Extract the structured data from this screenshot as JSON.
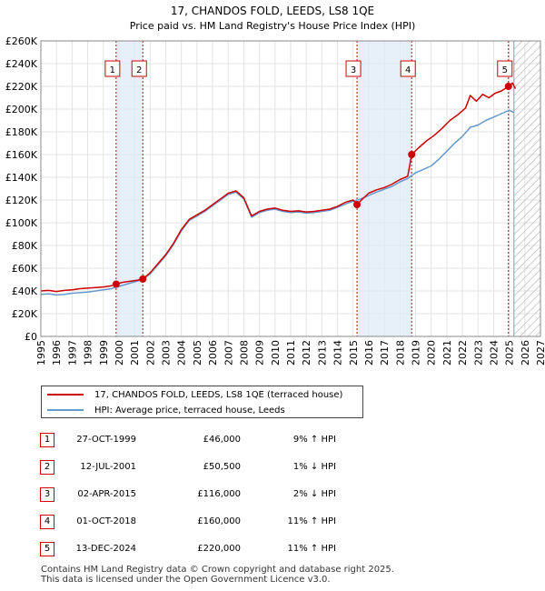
{
  "chart_data": {
    "type": "line",
    "title": "17, CHANDOS FOLD, LEEDS, LS8 1QE",
    "subtitle": "Price paid vs. HM Land Registry's House Price Index (HPI)",
    "xlim": [
      1995,
      2027
    ],
    "ylim": [
      0,
      260000
    ],
    "y_ticks": [
      0,
      20000,
      40000,
      60000,
      80000,
      100000,
      120000,
      140000,
      160000,
      180000,
      200000,
      220000,
      240000,
      260000
    ],
    "y_tick_labels": [
      "£0",
      "£20K",
      "£40K",
      "£60K",
      "£80K",
      "£100K",
      "£120K",
      "£140K",
      "£160K",
      "£180K",
      "£200K",
      "£220K",
      "£240K",
      "£260K"
    ],
    "x_ticks": [
      1995,
      1996,
      1997,
      1998,
      1999,
      2000,
      2001,
      2002,
      2003,
      2004,
      2005,
      2006,
      2007,
      2008,
      2009,
      2010,
      2011,
      2012,
      2013,
      2014,
      2015,
      2016,
      2017,
      2018,
      2019,
      2020,
      2021,
      2022,
      2023,
      2024,
      2025,
      2026,
      2027
    ],
    "x_tick_labels": [
      "1995",
      "1996",
      "1997",
      "1998",
      "1999",
      "2000",
      "2001",
      "2002",
      "2003",
      "2004",
      "2005",
      "2006",
      "2007",
      "2008",
      "2009",
      "2010",
      "2011",
      "2012",
      "2013",
      "2014",
      "2015",
      "2016",
      "2017",
      "2018",
      "2019",
      "2020",
      "2021",
      "2022",
      "2023",
      "2024",
      "2025",
      "2026",
      "2027"
    ],
    "hatch_start": 2025.3,
    "shaded_spans": [
      [
        1999.82,
        2001.53
      ],
      [
        2015.25,
        2018.75
      ]
    ],
    "series": [
      {
        "name": "17, CHANDOS FOLD, LEEDS, LS8 1QE (terraced house)",
        "color": "#cc0000",
        "x": [
          1995.0,
          1995.5,
          1996.0,
          1996.5,
          1997.0,
          1997.5,
          1998.0,
          1998.5,
          1999.0,
          1999.5,
          1999.82,
          2000.2,
          2000.7,
          2001.2,
          2001.53,
          2002.0,
          2002.5,
          2003.0,
          2003.5,
          2004.0,
          2004.5,
          2005.0,
          2005.5,
          2006.0,
          2006.5,
          2007.0,
          2007.5,
          2008.0,
          2008.5,
          2009.0,
          2009.5,
          2010.0,
          2010.5,
          2011.0,
          2011.5,
          2012.0,
          2012.5,
          2013.0,
          2013.5,
          2014.0,
          2014.5,
          2015.0,
          2015.25,
          2015.6,
          2016.0,
          2016.5,
          2017.0,
          2017.5,
          2018.0,
          2018.5,
          2018.75,
          2019.2,
          2019.7,
          2020.2,
          2020.7,
          2021.2,
          2021.7,
          2022.2,
          2022.5,
          2022.9,
          2023.3,
          2023.7,
          2024.1,
          2024.5,
          2024.95,
          2025.2,
          2025.4
        ],
        "values": [
          40000,
          40500,
          39500,
          40500,
          41000,
          42000,
          42500,
          43000,
          43500,
          44500,
          46000,
          47500,
          48500,
          49500,
          50500,
          56000,
          64000,
          72000,
          82000,
          94000,
          103000,
          107000,
          111000,
          116000,
          121000,
          126000,
          128000,
          122000,
          106000,
          110000,
          112000,
          113000,
          111000,
          110000,
          110500,
          109500,
          110000,
          111000,
          112000,
          114500,
          118000,
          120000,
          116000,
          121000,
          126000,
          129000,
          131000,
          134000,
          138000,
          141000,
          160000,
          166000,
          172000,
          177000,
          183000,
          190000,
          195000,
          201000,
          212000,
          207000,
          213000,
          210000,
          214000,
          216000,
          220000,
          223000,
          218000
        ]
      },
      {
        "name": "HPI: Average price, terraced house, Leeds",
        "color": "#6699cc",
        "x": [
          1995.0,
          1995.5,
          1996.0,
          1996.5,
          1997.0,
          1997.5,
          1998.0,
          1998.5,
          1999.0,
          1999.5,
          2000.0,
          2000.5,
          2001.0,
          2001.5,
          2002.0,
          2002.5,
          2003.0,
          2003.5,
          2004.0,
          2004.5,
          2005.0,
          2005.5,
          2006.0,
          2006.5,
          2007.0,
          2007.5,
          2008.0,
          2008.5,
          2009.0,
          2009.5,
          2010.0,
          2010.5,
          2011.0,
          2011.5,
          2012.0,
          2012.5,
          2013.0,
          2013.5,
          2014.0,
          2014.5,
          2015.0,
          2015.5,
          2016.0,
          2016.5,
          2017.0,
          2017.5,
          2018.0,
          2018.5,
          2019.0,
          2019.5,
          2020.0,
          2020.5,
          2021.0,
          2021.5,
          2022.0,
          2022.5,
          2023.0,
          2023.5,
          2024.0,
          2024.5,
          2025.0,
          2025.3
        ],
        "values": [
          37000,
          37500,
          36500,
          37000,
          38000,
          38500,
          39000,
          40000,
          41000,
          42000,
          44000,
          46000,
          48000,
          50000,
          55000,
          63000,
          71000,
          81000,
          93000,
          102000,
          106000,
          110000,
          115000,
          120000,
          125000,
          127000,
          121000,
          105000,
          109000,
          111000,
          112000,
          110000,
          109000,
          109500,
          108500,
          109000,
          110000,
          111000,
          113500,
          116500,
          119000,
          121000,
          124000,
          127000,
          129500,
          132000,
          136000,
          139000,
          144000,
          147000,
          150000,
          156000,
          163000,
          170000,
          176000,
          184000,
          186000,
          190000,
          193000,
          196000,
          199000,
          197000
        ]
      }
    ],
    "sale_points": [
      {
        "label": "1",
        "x": 1999.82,
        "value": 46000
      },
      {
        "label": "2",
        "x": 2001.53,
        "value": 50500
      },
      {
        "label": "3",
        "x": 2015.25,
        "value": 116000
      },
      {
        "label": "4",
        "x": 2018.75,
        "value": 160000
      },
      {
        "label": "5",
        "x": 2024.95,
        "value": 220000
      }
    ]
  },
  "legend": {
    "property_label": "17, CHANDOS FOLD, LEEDS, LS8 1QE (terraced house)",
    "hpi_label": "HPI: Average price, terraced house, Leeds"
  },
  "sales": [
    {
      "num": "1",
      "date": "27-OCT-1999",
      "price": "£46,000",
      "hpi": "9% ↑ HPI"
    },
    {
      "num": "2",
      "date": "12-JUL-2001",
      "price": "£50,500",
      "hpi": "1% ↓ HPI"
    },
    {
      "num": "3",
      "date": "02-APR-2015",
      "price": "£116,000",
      "hpi": "2% ↓ HPI"
    },
    {
      "num": "4",
      "date": "01-OCT-2018",
      "price": "£160,000",
      "hpi": "11% ↑ HPI"
    },
    {
      "num": "5",
      "date": "13-DEC-2024",
      "price": "£220,000",
      "hpi": "11% ↑ HPI"
    }
  ],
  "footer": {
    "line1": "Contains HM Land Registry data © Crown copyright and database right 2025.",
    "line2": "This data is licensed under the Open Government Licence v3.0."
  }
}
